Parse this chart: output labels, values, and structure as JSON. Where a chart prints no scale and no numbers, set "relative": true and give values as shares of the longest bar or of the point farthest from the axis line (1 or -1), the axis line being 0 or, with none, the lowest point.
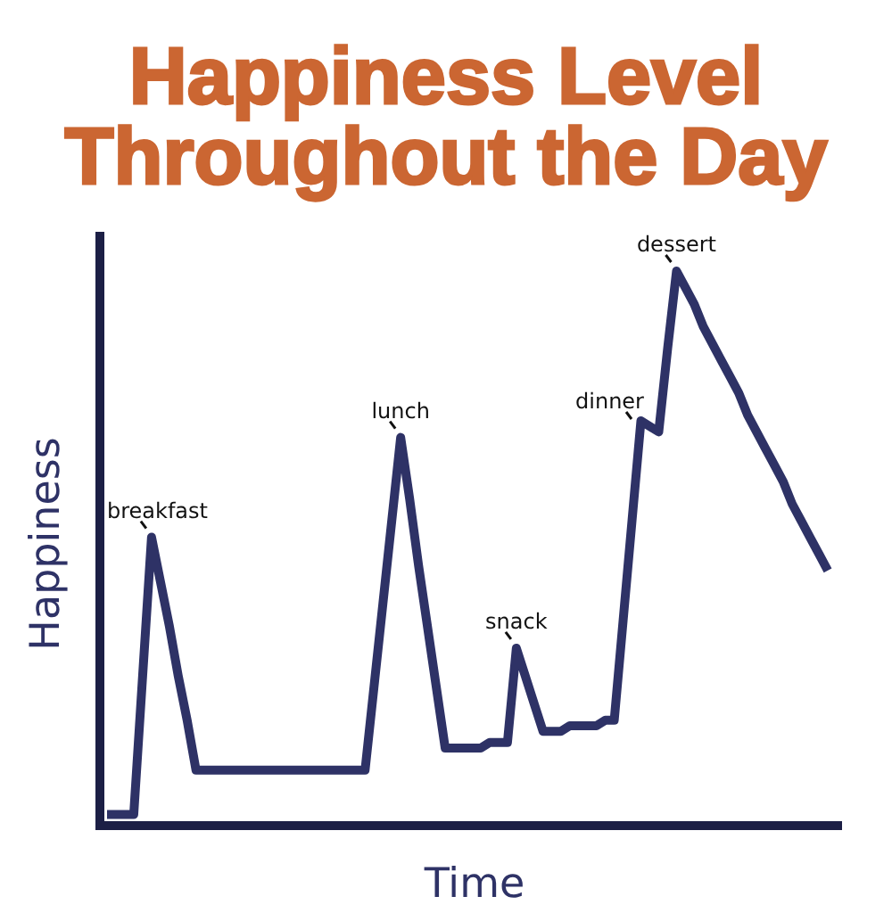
{
  "chart_data": {
    "type": "line",
    "title": "Happiness Level Throughout the Day",
    "xlabel": "Time",
    "ylabel": "Happiness",
    "relative": true,
    "categories": [
      null,
      null,
      null,
      null,
      null,
      null,
      null,
      null,
      null,
      null,
      null,
      null,
      null,
      null,
      null,
      null,
      null,
      null,
      null,
      null,
      null,
      null,
      null,
      null,
      null,
      null,
      null,
      null,
      null,
      null,
      null,
      null,
      null,
      null,
      null,
      null,
      null,
      null,
      null,
      null,
      null,
      null,
      null,
      null,
      null,
      null,
      null,
      null,
      null,
      null,
      null,
      null,
      null,
      null,
      null,
      null,
      null,
      null,
      null,
      null,
      null,
      null,
      null,
      null,
      null,
      null,
      null,
      null,
      null,
      null,
      null,
      null,
      null,
      null,
      null,
      null,
      null,
      null,
      null,
      null,
      null,
      null
    ],
    "color": "#2e3266",
    "values": [
      0.02,
      0.02,
      0.02,
      0.02,
      0.27,
      0.52,
      0.44,
      0.36,
      0.27,
      0.19,
      0.1,
      0.1,
      0.1,
      0.1,
      0.1,
      0.1,
      0.1,
      0.1,
      0.1,
      0.1,
      0.1,
      0.1,
      0.1,
      0.1,
      0.1,
      0.1,
      0.1,
      0.1,
      0.1,
      0.1,
      0.25,
      0.4,
      0.55,
      0.7,
      0.59,
      0.47,
      0.36,
      0.25,
      0.14,
      0.14,
      0.14,
      0.14,
      0.14,
      0.15,
      0.15,
      0.15,
      0.32,
      0.27,
      0.22,
      0.17,
      0.17,
      0.17,
      0.18,
      0.18,
      0.18,
      0.18,
      0.19,
      0.19,
      0.37,
      0.55,
      0.73,
      0.72,
      0.71,
      0.86,
      1,
      0.97,
      0.94,
      0.9,
      0.87,
      0.84,
      0.81,
      0.78,
      0.74,
      0.71,
      0.68,
      0.65,
      0.62,
      0.58,
      0.55,
      0.52,
      0.49,
      0.46
    ],
    "annotations": [
      {
        "text": "breakfast",
        "y": 0.52
      },
      {
        "text": "lunch",
        "y": 0.7
      },
      {
        "text": "snack",
        "y": 0.32
      },
      "dinner",
      {
        "text": "dessert",
        "y": 1
      }
    ]
  }
}
